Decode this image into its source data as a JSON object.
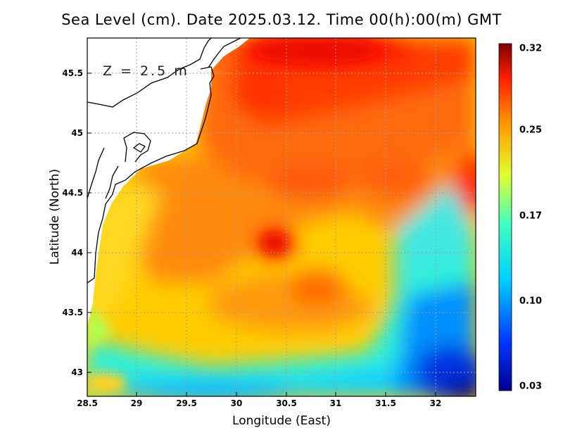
{
  "title": "Sea Level (cm). Date 2025.03.12. Time 00(h):00(m) GMT",
  "depth_label": "Z = 2.5 m",
  "x_axis": {
    "label": "Longitude (East)",
    "ticks": [
      "28.5",
      "29",
      "29.5",
      "30",
      "30.5",
      "31",
      "31.5",
      "32"
    ],
    "range": [
      28.5,
      32.4
    ]
  },
  "y_axis": {
    "label": "Latitude (North)",
    "ticks": [
      "43",
      "43.5",
      "44",
      "44.5",
      "45",
      "45.5"
    ],
    "range": [
      42.8,
      45.8
    ]
  },
  "colorbar": {
    "labels": [
      "0.32",
      "0.25",
      "0.17",
      "0.10",
      "0.03"
    ],
    "min": 0.03,
    "max": 0.32
  },
  "chart_data": {
    "type": "heatmap",
    "variable": "Sea Level (cm)",
    "date": "2025.03.12",
    "time": "00(h):00(m) GMT",
    "depth": "Z = 2.5 m",
    "lon_range": [
      28.5,
      32.4
    ],
    "lat_range": [
      42.8,
      45.8
    ],
    "value_range": [
      0.03,
      0.32
    ],
    "features": [
      {
        "name": "northern maximum",
        "lon": 30.8,
        "lat": 45.7,
        "value": 0.31
      },
      {
        "name": "local maximum",
        "lon": 30.4,
        "lat": 44.05,
        "value": 0.3
      },
      {
        "name": "eastern maximum",
        "lon": 32.3,
        "lat": 44.6,
        "value": 0.3
      },
      {
        "name": "southeast minimum",
        "lon": 32.2,
        "lat": 42.9,
        "value": 0.04
      },
      {
        "name": "southern low band",
        "lon": 30.8,
        "lat": 42.95,
        "value": 0.13
      }
    ]
  }
}
